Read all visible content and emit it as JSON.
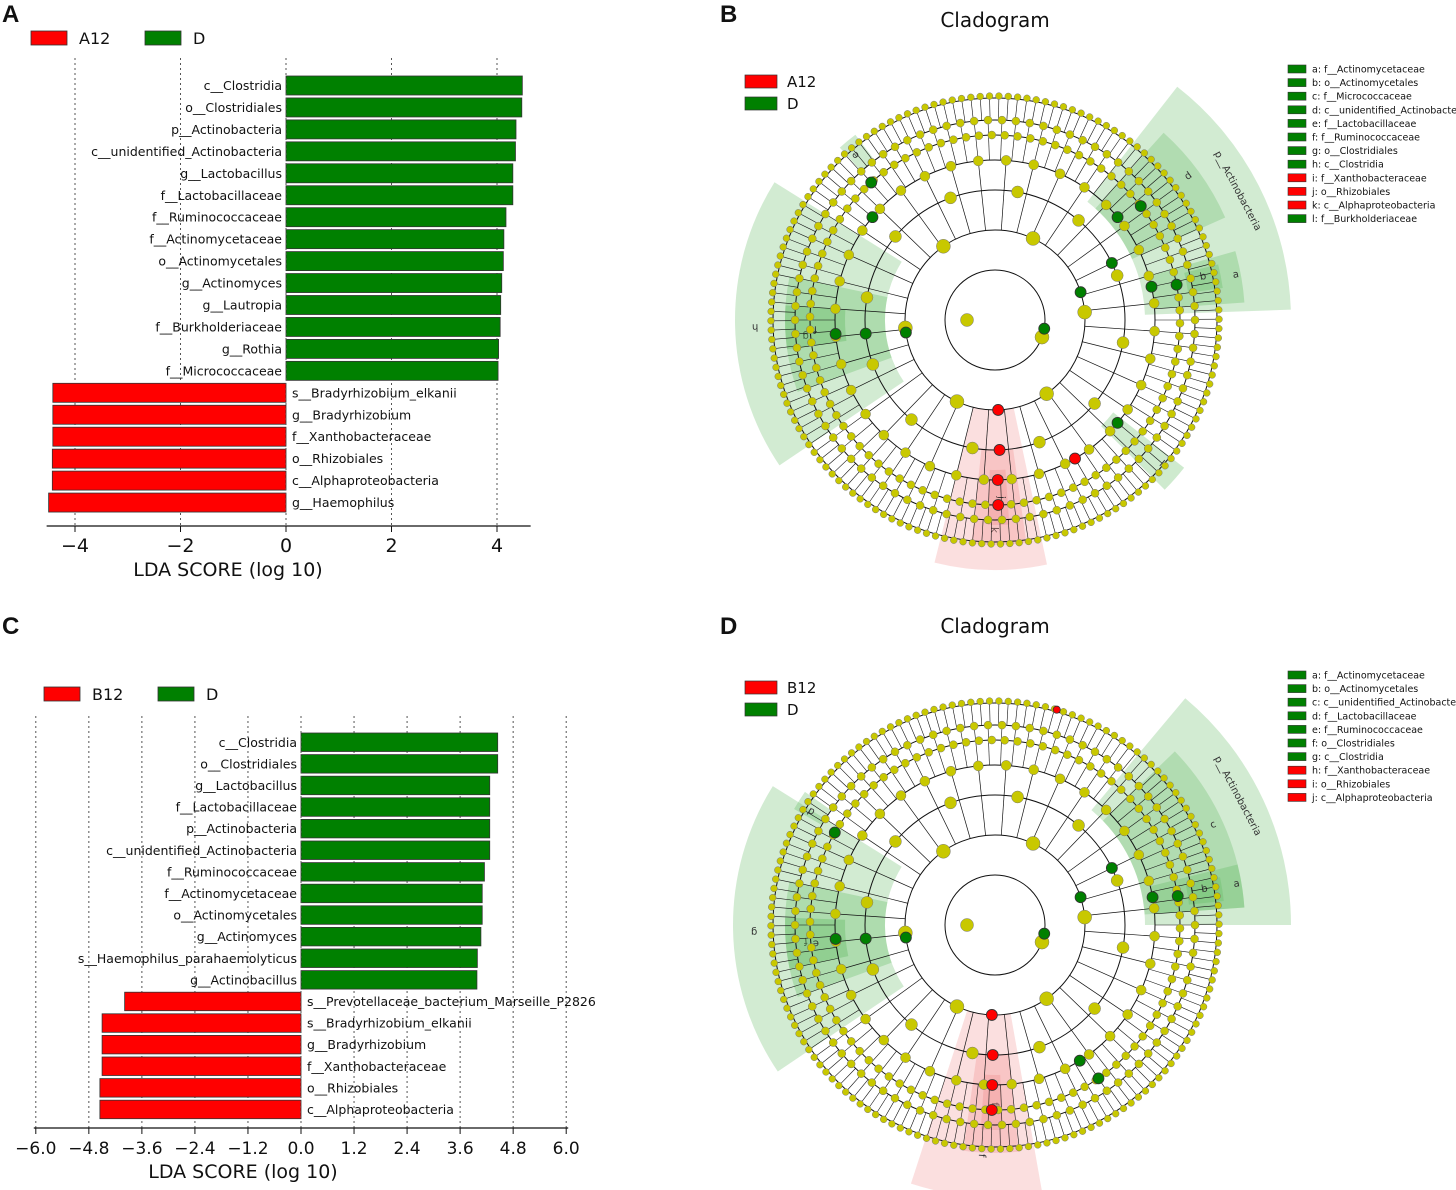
{
  "colors": {
    "red": "#ff0000",
    "green": "#008000",
    "node": "#c8c800"
  },
  "panels": {
    "A": "A",
    "B": "B",
    "C": "C",
    "D": "D"
  },
  "chart_data": [
    {
      "type": "bar",
      "orientation": "horizontal",
      "panel": "A",
      "legend": [
        {
          "name": "A12",
          "color": "#ff0000"
        },
        {
          "name": "D",
          "color": "#008000"
        }
      ],
      "xlabel": "LDA SCORE (log 10)",
      "xlim": [
        -4.5,
        4.6
      ],
      "xticks": [
        -4,
        -2,
        0,
        2,
        4
      ],
      "xtick_labels": [
        "−4",
        "−2",
        "0",
        "2",
        "4"
      ],
      "categories": [
        "c__Clostridia",
        "o__Clostridiales",
        "p__Actinobacteria",
        "c__unidentified_Actinobacteria",
        "g__Lactobacillus",
        "f__Lactobacillaceae",
        "f__Ruminococcaceae",
        "f__Actinomycetaceae",
        "o__Actinomycetales",
        "g__Actinomyces",
        "g__Lautropia",
        "f__Burkholderiaceae",
        "g__Rothia",
        "f__Micrococcaceae",
        "s__Bradyrhizobium_elkanii",
        "g__Bradyrhizobium",
        "f__Xanthobacteraceae",
        "o__Rhizobiales",
        "c__Alphaproteobacteria",
        "g__Haemophilus"
      ],
      "values": [
        4.48,
        4.47,
        4.36,
        4.35,
        4.3,
        4.3,
        4.17,
        4.13,
        4.12,
        4.09,
        4.07,
        4.06,
        4.03,
        4.02,
        -4.42,
        -4.42,
        -4.42,
        -4.43,
        -4.43,
        -4.5
      ]
    },
    {
      "type": "bar",
      "orientation": "horizontal",
      "panel": "C",
      "legend": [
        {
          "name": "B12",
          "color": "#ff0000"
        },
        {
          "name": "D",
          "color": "#008000"
        }
      ],
      "xlabel": "LDA SCORE (log 10)",
      "xlim": [
        -6.0,
        6.0
      ],
      "xticks": [
        -6.0,
        -4.8,
        -3.6,
        -2.4,
        -1.2,
        0.0,
        1.2,
        2.4,
        3.6,
        4.8,
        6.0
      ],
      "xtick_labels": [
        "−6.0",
        "−4.8",
        "−3.6",
        "−2.4",
        "−1.2",
        "0.0",
        "1.2",
        "2.4",
        "3.6",
        "4.8",
        "6.0"
      ],
      "categories": [
        "c__Clostridia",
        "o__Clostridiales",
        "g__Lactobacillus",
        "f__Lactobacillaceae",
        "p__Actinobacteria",
        "c__unidentified_Actinobacteria",
        "f__Ruminococcaceae",
        "f__Actinomycetaceae",
        "o__Actinomycetales",
        "g__Actinomyces",
        "s__Haemophilus_parahaemolyticus",
        "g__Actinobacillus",
        "s__Prevotellaceae_bacterium_Marseille_P2826",
        "s__Bradyrhizobium_elkanii",
        "g__Bradyrhizobium",
        "f__Xanthobacteraceae",
        "o__Rhizobiales",
        "c__Alphaproteobacteria"
      ],
      "values": [
        4.45,
        4.45,
        4.27,
        4.27,
        4.27,
        4.27,
        4.15,
        4.1,
        4.1,
        4.07,
        3.99,
        3.98,
        -3.99,
        -4.5,
        -4.5,
        -4.5,
        -4.55,
        -4.55
      ]
    }
  ],
  "cladograms": [
    {
      "panel": "B",
      "title": "Cladogram",
      "legend": [
        {
          "name": "A12",
          "color": "#ff0000"
        },
        {
          "name": "D",
          "color": "#008000"
        }
      ],
      "phylum_label": "p__Actinobacteria",
      "key": [
        {
          "text": "a: f__Actinomycetaceae",
          "color": "#008000"
        },
        {
          "text": "b: o__Actinomycetales",
          "color": "#008000"
        },
        {
          "text": "c: f__Micrococcaceae",
          "color": "#008000"
        },
        {
          "text": "d: c__unidentified_Actinobacteria",
          "color": "#008000"
        },
        {
          "text": "e: f__Lactobacillaceae",
          "color": "#008000"
        },
        {
          "text": "f: f__Ruminococcaceae",
          "color": "#008000"
        },
        {
          "text": "g: o__Clostridiales",
          "color": "#008000"
        },
        {
          "text": "h: c__Clostridia",
          "color": "#008000"
        },
        {
          "text": "i: f__Xanthobacteraceae",
          "color": "#ff0000"
        },
        {
          "text": "j: o__Rhizobiales",
          "color": "#ff0000"
        },
        {
          "text": "k: c__Alphaproteobacteria",
          "color": "#ff0000"
        },
        {
          "text": "l: f__Burkholderiaceae",
          "color": "#008000"
        }
      ]
    },
    {
      "panel": "D",
      "title": "Cladogram",
      "legend": [
        {
          "name": "B12",
          "color": "#ff0000"
        },
        {
          "name": "D",
          "color": "#008000"
        }
      ],
      "phylum_label": "p__Actinobacteria",
      "key": [
        {
          "text": "a: f__Actinomycetaceae",
          "color": "#008000"
        },
        {
          "text": "b: o__Actinomycetales",
          "color": "#008000"
        },
        {
          "text": "c: c__unidentified_Actinobacteria",
          "color": "#008000"
        },
        {
          "text": "d: f__Lactobacillaceae",
          "color": "#008000"
        },
        {
          "text": "e: f__Ruminococcaceae",
          "color": "#008000"
        },
        {
          "text": "f: o__Clostridiales",
          "color": "#008000"
        },
        {
          "text": "g: c__Clostridia",
          "color": "#008000"
        },
        {
          "text": "h: f__Xanthobacteraceae",
          "color": "#ff0000"
        },
        {
          "text": "i: o__Rhizobiales",
          "color": "#ff0000"
        },
        {
          "text": "j: c__Alphaproteobacteria",
          "color": "#ff0000"
        }
      ]
    }
  ]
}
